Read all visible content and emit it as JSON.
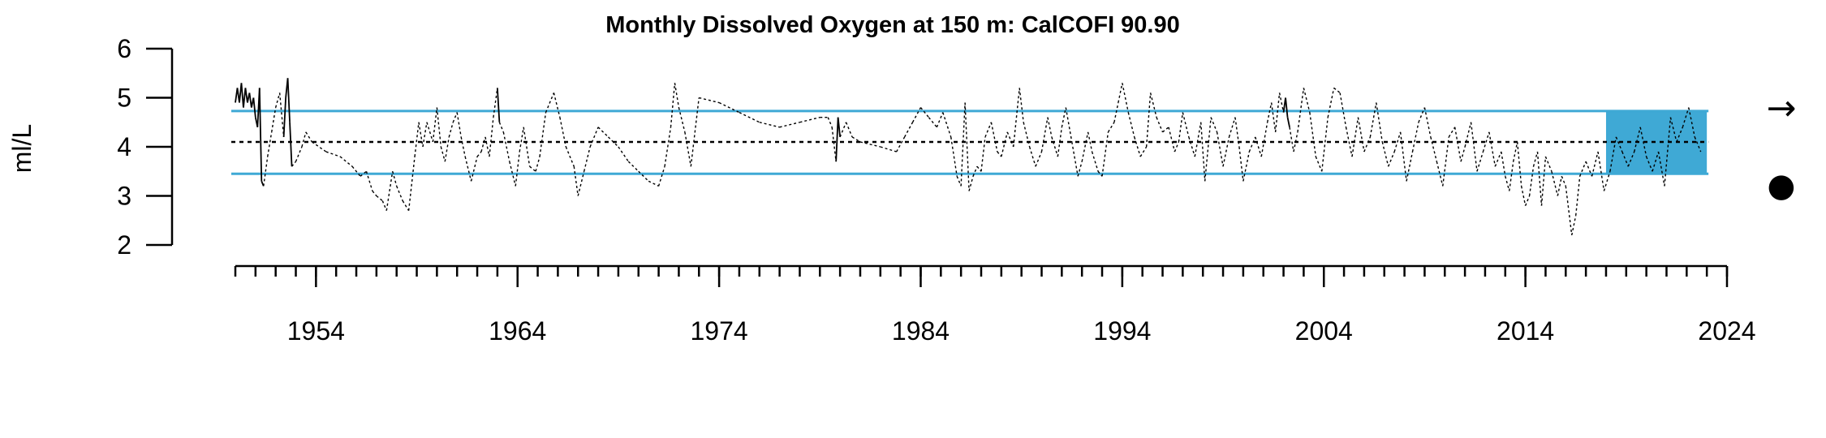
{
  "chart_data": {
    "type": "line",
    "title": "Monthly Dissolved Oxygen at 150 m: CalCOFI 90.90",
    "ylabel": "ml/L",
    "xlabel": "",
    "xlim": [
      1950,
      2024
    ],
    "ylim": [
      2,
      6
    ],
    "y_ticks": [
      "2",
      "3",
      "4",
      "5",
      "6"
    ],
    "x_tick_labels": [
      "1954",
      "1964",
      "1974",
      "1984",
      "1994",
      "2004",
      "2014",
      "2024"
    ],
    "x_tick_values": [
      1954,
      1964,
      1974,
      1984,
      1994,
      2004,
      2014,
      2024
    ],
    "x_minor_ticks_every": 1,
    "mean": 4.1,
    "upper_sd": 4.73,
    "lower_sd": 3.45,
    "recent_window": [
      2018.0,
      2023.0
    ],
    "trend_symbol": "→",
    "status_symbol": "●",
    "colors": {
      "band": "#3fa9d5",
      "line": "#000000"
    },
    "series": [
      {
        "points": [
          [
            1950.0,
            4.9
          ],
          [
            1950.1,
            5.2
          ],
          [
            1950.2,
            4.9
          ],
          [
            1950.3,
            5.3
          ],
          [
            1950.4,
            4.8
          ],
          [
            1950.5,
            5.2
          ],
          [
            1950.6,
            4.9
          ],
          [
            1950.7,
            5.1
          ],
          [
            1950.8,
            4.8
          ],
          [
            1950.9,
            5.0
          ],
          [
            1951.0,
            4.6
          ],
          [
            1951.1,
            4.4
          ],
          [
            1951.2,
            5.2
          ],
          [
            1951.3,
            3.3
          ],
          [
            1951.4,
            3.2
          ],
          [
            1951.6,
            3.8
          ],
          [
            1951.8,
            4.3
          ],
          [
            1952.0,
            4.8
          ],
          [
            1952.2,
            5.1
          ],
          [
            1952.4,
            4.2
          ],
          [
            1952.5,
            5.0
          ],
          [
            1952.6,
            5.4
          ],
          [
            1952.7,
            4.5
          ],
          [
            1952.8,
            3.6
          ],
          [
            1953.0,
            3.7
          ],
          [
            1953.3,
            4.0
          ],
          [
            1953.5,
            4.3
          ],
          [
            1953.8,
            4.1
          ],
          [
            1954.5,
            3.9
          ],
          [
            1955.2,
            3.8
          ],
          [
            1955.8,
            3.6
          ],
          [
            1956.2,
            3.4
          ],
          [
            1956.5,
            3.5
          ],
          [
            1956.8,
            3.1
          ],
          [
            1957.0,
            3.0
          ],
          [
            1957.3,
            2.9
          ],
          [
            1957.5,
            2.7
          ],
          [
            1957.8,
            3.5
          ],
          [
            1958.0,
            3.2
          ],
          [
            1958.3,
            2.9
          ],
          [
            1958.6,
            2.7
          ],
          [
            1958.9,
            3.8
          ],
          [
            1959.1,
            4.5
          ],
          [
            1959.3,
            4.0
          ],
          [
            1959.5,
            4.5
          ],
          [
            1959.8,
            4.1
          ],
          [
            1960.0,
            4.8
          ],
          [
            1960.2,
            4.0
          ],
          [
            1960.4,
            3.7
          ],
          [
            1960.6,
            4.2
          ],
          [
            1960.8,
            4.5
          ],
          [
            1961.0,
            4.7
          ],
          [
            1961.2,
            4.2
          ],
          [
            1961.4,
            3.8
          ],
          [
            1961.7,
            3.3
          ],
          [
            1962.0,
            3.8
          ],
          [
            1962.2,
            3.9
          ],
          [
            1962.4,
            4.2
          ],
          [
            1962.6,
            3.8
          ],
          [
            1962.8,
            4.6
          ],
          [
            1963.0,
            5.2
          ],
          [
            1963.1,
            4.5
          ],
          [
            1963.3,
            4.3
          ],
          [
            1963.6,
            3.7
          ],
          [
            1963.9,
            3.2
          ],
          [
            1964.1,
            3.9
          ],
          [
            1964.3,
            4.4
          ],
          [
            1964.6,
            3.6
          ],
          [
            1964.9,
            3.5
          ],
          [
            1965.1,
            3.8
          ],
          [
            1965.4,
            4.7
          ],
          [
            1965.8,
            5.1
          ],
          [
            1966.1,
            4.6
          ],
          [
            1966.4,
            4.0
          ],
          [
            1966.8,
            3.6
          ],
          [
            1967.0,
            3.0
          ],
          [
            1967.3,
            3.5
          ],
          [
            1967.6,
            4.0
          ],
          [
            1968.0,
            4.4
          ],
          [
            1968.5,
            4.2
          ],
          [
            1969.0,
            4.0
          ],
          [
            1969.5,
            3.7
          ],
          [
            1970.0,
            3.5
          ],
          [
            1970.5,
            3.3
          ],
          [
            1971.0,
            3.2
          ],
          [
            1971.3,
            3.6
          ],
          [
            1971.6,
            4.4
          ],
          [
            1971.8,
            5.3
          ],
          [
            1972.0,
            4.8
          ],
          [
            1972.3,
            4.3
          ],
          [
            1972.6,
            3.6
          ],
          [
            1973.0,
            5.0
          ],
          [
            1974.0,
            4.9
          ],
          [
            1975.0,
            4.7
          ],
          [
            1976.0,
            4.5
          ],
          [
            1977.0,
            4.4
          ],
          [
            1978.0,
            4.5
          ],
          [
            1979.0,
            4.6
          ],
          [
            1979.4,
            4.6
          ],
          [
            1979.6,
            4.4
          ],
          [
            1979.8,
            3.7
          ],
          [
            1979.9,
            4.6
          ],
          [
            1980.0,
            4.2
          ],
          [
            1980.3,
            4.5
          ],
          [
            1980.6,
            4.2
          ],
          [
            1981.0,
            4.1
          ],
          [
            1982.0,
            4.0
          ],
          [
            1982.8,
            3.9
          ],
          [
            1983.2,
            4.2
          ],
          [
            1983.6,
            4.5
          ],
          [
            1984.0,
            4.8
          ],
          [
            1984.4,
            4.6
          ],
          [
            1984.8,
            4.4
          ],
          [
            1985.1,
            4.7
          ],
          [
            1985.5,
            4.2
          ],
          [
            1985.8,
            3.4
          ],
          [
            1986.0,
            3.2
          ],
          [
            1986.2,
            4.9
          ],
          [
            1986.4,
            3.1
          ],
          [
            1986.6,
            3.4
          ],
          [
            1986.8,
            3.6
          ],
          [
            1987.0,
            3.5
          ],
          [
            1987.2,
            4.2
          ],
          [
            1987.5,
            4.5
          ],
          [
            1987.8,
            3.9
          ],
          [
            1988.0,
            3.8
          ],
          [
            1988.3,
            4.3
          ],
          [
            1988.6,
            4.0
          ],
          [
            1988.9,
            5.2
          ],
          [
            1989.1,
            4.5
          ],
          [
            1989.4,
            4.0
          ],
          [
            1989.7,
            3.6
          ],
          [
            1990.0,
            3.9
          ],
          [
            1990.3,
            4.6
          ],
          [
            1990.5,
            4.2
          ],
          [
            1990.8,
            3.8
          ],
          [
            1991.0,
            4.4
          ],
          [
            1991.2,
            4.8
          ],
          [
            1991.5,
            4.1
          ],
          [
            1991.8,
            3.4
          ],
          [
            1992.0,
            3.7
          ],
          [
            1992.3,
            4.3
          ],
          [
            1992.5,
            3.9
          ],
          [
            1992.8,
            3.5
          ],
          [
            1993.0,
            3.4
          ],
          [
            1993.3,
            4.3
          ],
          [
            1993.6,
            4.5
          ],
          [
            1993.8,
            4.9
          ],
          [
            1994.0,
            5.3
          ],
          [
            1994.3,
            4.7
          ],
          [
            1994.6,
            4.2
          ],
          [
            1994.9,
            3.8
          ],
          [
            1995.2,
            4.0
          ],
          [
            1995.4,
            5.1
          ],
          [
            1995.7,
            4.6
          ],
          [
            1996.0,
            4.3
          ],
          [
            1996.3,
            4.4
          ],
          [
            1996.6,
            3.9
          ],
          [
            1996.8,
            4.1
          ],
          [
            1997.0,
            4.7
          ],
          [
            1997.3,
            4.2
          ],
          [
            1997.6,
            3.8
          ],
          [
            1997.9,
            4.5
          ],
          [
            1998.1,
            3.3
          ],
          [
            1998.4,
            4.6
          ],
          [
            1998.7,
            4.3
          ],
          [
            1999.0,
            3.6
          ],
          [
            1999.3,
            4.2
          ],
          [
            1999.6,
            4.6
          ],
          [
            1999.8,
            4.0
          ],
          [
            2000.0,
            3.3
          ],
          [
            2000.3,
            3.9
          ],
          [
            2000.6,
            4.2
          ],
          [
            2000.9,
            3.8
          ],
          [
            2001.2,
            4.5
          ],
          [
            2001.4,
            4.9
          ],
          [
            2001.6,
            4.3
          ],
          [
            2001.8,
            5.1
          ],
          [
            2002.0,
            4.7
          ],
          [
            2002.1,
            5.0
          ],
          [
            2002.2,
            4.6
          ],
          [
            2002.3,
            4.4
          ],
          [
            2002.5,
            3.9
          ],
          [
            2002.7,
            4.3
          ],
          [
            2003.0,
            5.2
          ],
          [
            2003.3,
            4.7
          ],
          [
            2003.6,
            3.8
          ],
          [
            2003.9,
            3.5
          ],
          [
            2004.2,
            4.6
          ],
          [
            2004.5,
            5.2
          ],
          [
            2004.8,
            5.1
          ],
          [
            2005.1,
            4.4
          ],
          [
            2005.4,
            3.8
          ],
          [
            2005.7,
            4.6
          ],
          [
            2006.0,
            3.9
          ],
          [
            2006.3,
            4.2
          ],
          [
            2006.6,
            4.9
          ],
          [
            2006.9,
            4.1
          ],
          [
            2007.2,
            3.6
          ],
          [
            2007.5,
            3.9
          ],
          [
            2007.8,
            4.3
          ],
          [
            2008.1,
            3.3
          ],
          [
            2008.4,
            3.9
          ],
          [
            2008.7,
            4.5
          ],
          [
            2009.0,
            4.8
          ],
          [
            2009.3,
            4.2
          ],
          [
            2009.6,
            3.7
          ],
          [
            2009.9,
            3.2
          ],
          [
            2010.2,
            4.2
          ],
          [
            2010.5,
            4.4
          ],
          [
            2010.8,
            3.7
          ],
          [
            2011.0,
            4.0
          ],
          [
            2011.3,
            4.5
          ],
          [
            2011.6,
            3.5
          ],
          [
            2011.9,
            3.9
          ],
          [
            2012.2,
            4.3
          ],
          [
            2012.5,
            3.6
          ],
          [
            2012.8,
            3.9
          ],
          [
            2013.0,
            3.4
          ],
          [
            2013.2,
            3.1
          ],
          [
            2013.4,
            3.7
          ],
          [
            2013.6,
            4.1
          ],
          [
            2013.8,
            3.2
          ],
          [
            2014.0,
            2.8
          ],
          [
            2014.2,
            3.0
          ],
          [
            2014.4,
            3.6
          ],
          [
            2014.6,
            3.9
          ],
          [
            2014.8,
            2.8
          ],
          [
            2015.0,
            3.8
          ],
          [
            2015.3,
            3.5
          ],
          [
            2015.6,
            3.0
          ],
          [
            2015.8,
            3.4
          ],
          [
            2016.0,
            3.2
          ],
          [
            2016.3,
            2.2
          ],
          [
            2016.5,
            2.6
          ],
          [
            2016.7,
            3.4
          ],
          [
            2017.0,
            3.7
          ],
          [
            2017.3,
            3.4
          ],
          [
            2017.6,
            3.9
          ],
          [
            2017.9,
            3.1
          ],
          [
            2018.2,
            3.5
          ],
          [
            2018.5,
            4.2
          ],
          [
            2018.8,
            3.9
          ],
          [
            2019.1,
            3.6
          ],
          [
            2019.4,
            3.9
          ],
          [
            2019.7,
            4.4
          ],
          [
            2020.0,
            3.8
          ],
          [
            2020.3,
            3.5
          ],
          [
            2020.6,
            3.9
          ],
          [
            2020.9,
            3.2
          ],
          [
            2021.2,
            4.6
          ],
          [
            2021.5,
            4.1
          ],
          [
            2021.8,
            4.4
          ],
          [
            2022.1,
            4.8
          ],
          [
            2022.4,
            4.2
          ],
          [
            2022.7,
            3.9
          ]
        ]
      }
    ]
  }
}
